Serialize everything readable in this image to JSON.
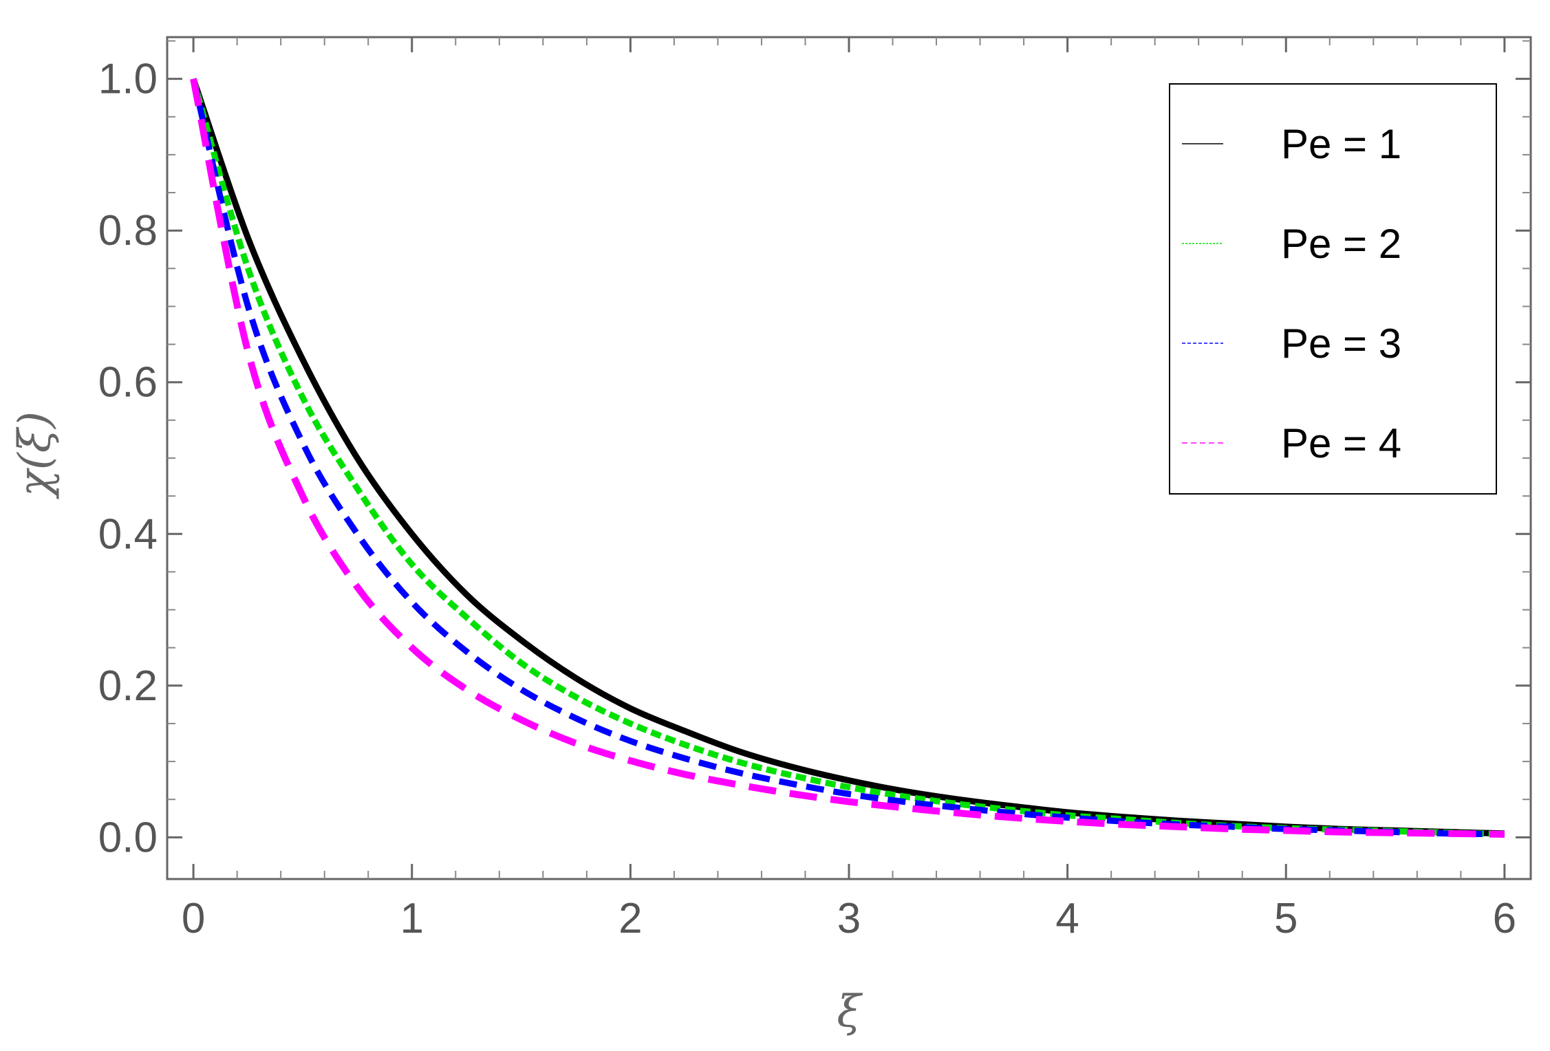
{
  "chart_data": {
    "type": "line",
    "title": "",
    "xlabel": "ξ",
    "ylabel": "χ(ξ)",
    "xlim": [
      -0.12,
      6.12
    ],
    "ylim": [
      -0.055,
      1.055
    ],
    "x_ticks": [
      0,
      1,
      2,
      3,
      4,
      5,
      6
    ],
    "x_tick_labels": [
      "0",
      "1",
      "2",
      "3",
      "4",
      "5",
      "6"
    ],
    "y_ticks": [
      0.0,
      0.2,
      0.4,
      0.6,
      0.8,
      1.0
    ],
    "y_tick_labels": [
      "0.0",
      "0.2",
      "0.4",
      "0.6",
      "0.8",
      "1.0"
    ],
    "grid": false,
    "legend_position": "top-right",
    "x": [
      0,
      0.25,
      0.5,
      0.75,
      1,
      1.25,
      1.5,
      1.75,
      2,
      2.25,
      2.5,
      2.75,
      3,
      3.25,
      3.5,
      3.75,
      4,
      4.25,
      4.5,
      4.75,
      5,
      5.25,
      5.5,
      5.75,
      6
    ],
    "series": [
      {
        "name": "Pe = 1",
        "color": "#000000",
        "style": "solid",
        "values": [
          1.0,
          0.79,
          0.63,
          0.5,
          0.4,
          0.32,
          0.26,
          0.21,
          0.17,
          0.14,
          0.113,
          0.092,
          0.075,
          0.061,
          0.05,
          0.041,
          0.033,
          0.027,
          0.022,
          0.018,
          0.014,
          0.011,
          0.009,
          0.007,
          0.005
        ]
      },
      {
        "name": "Pe = 2",
        "color": "#00e000",
        "style": "dotted",
        "values": [
          1.0,
          0.75,
          0.58,
          0.46,
          0.36,
          0.29,
          0.23,
          0.185,
          0.15,
          0.122,
          0.099,
          0.081,
          0.066,
          0.054,
          0.044,
          0.036,
          0.029,
          0.024,
          0.019,
          0.015,
          0.012,
          0.01,
          0.008,
          0.006,
          0.004
        ]
      },
      {
        "name": "Pe = 3",
        "color": "#0000ff",
        "style": "dashed",
        "values": [
          1.0,
          0.7,
          0.52,
          0.4,
          0.31,
          0.245,
          0.195,
          0.157,
          0.127,
          0.104,
          0.085,
          0.07,
          0.057,
          0.047,
          0.039,
          0.032,
          0.026,
          0.021,
          0.017,
          0.014,
          0.011,
          0.009,
          0.007,
          0.005,
          0.004
        ]
      },
      {
        "name": "Pe = 4",
        "color": "#ff00ff",
        "style": "long-dashed",
        "values": [
          1.0,
          0.64,
          0.45,
          0.33,
          0.25,
          0.195,
          0.155,
          0.124,
          0.101,
          0.083,
          0.069,
          0.057,
          0.047,
          0.039,
          0.032,
          0.026,
          0.021,
          0.017,
          0.014,
          0.011,
          0.009,
          0.007,
          0.006,
          0.005,
          0.004
        ]
      }
    ]
  }
}
